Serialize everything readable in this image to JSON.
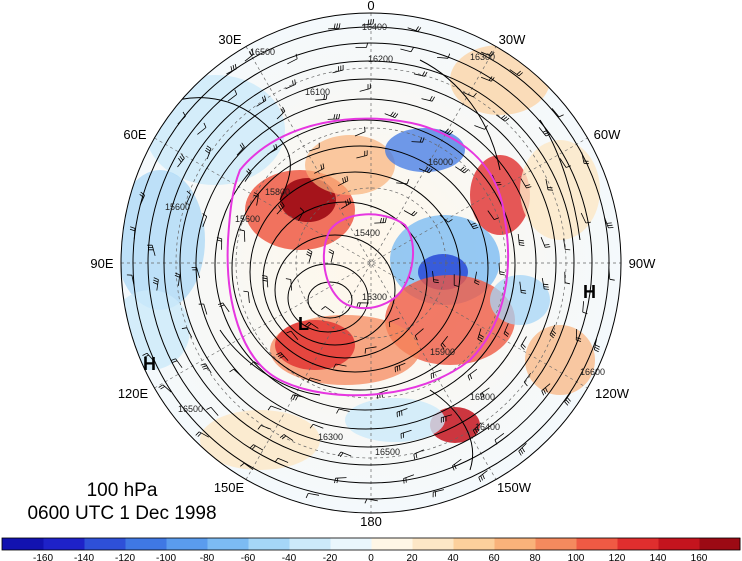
{
  "map": {
    "projection": "polar stereographic (north pole)",
    "level_label": "100 hPa",
    "time_label": "0600 UTC 1 Dec 1998",
    "longitude_labels": [
      {
        "id": "lon-0",
        "text": "0"
      },
      {
        "id": "lon-30w",
        "text": "30W"
      },
      {
        "id": "lon-60w",
        "text": "60W"
      },
      {
        "id": "lon-90w",
        "text": "90W"
      },
      {
        "id": "lon-120w",
        "text": "120W"
      },
      {
        "id": "lon-150w",
        "text": "150W"
      },
      {
        "id": "lon-180",
        "text": "180"
      },
      {
        "id": "lon-150e",
        "text": "150E"
      },
      {
        "id": "lon-120e",
        "text": "120E"
      },
      {
        "id": "lon-90e",
        "text": "90E"
      },
      {
        "id": "lon-60e",
        "text": "60E"
      },
      {
        "id": "lon-30e",
        "text": "30E"
      }
    ],
    "pressure_centers": [
      {
        "id": "low-center",
        "text": "L"
      },
      {
        "id": "high-center-east",
        "text": "H"
      },
      {
        "id": "high-center-west",
        "text": "H"
      }
    ],
    "contour_labels": [
      "16500",
      "16400",
      "16200",
      "16300",
      "16100",
      "16000",
      "15800",
      "15600",
      "15400",
      "15300",
      "15900",
      "16300",
      "16500",
      "16400",
      "16300",
      "16500",
      "16600",
      "15600"
    ],
    "colorbar": {
      "ticks": [
        "-160",
        "-140",
        "-120",
        "-100",
        "-80",
        "-60",
        "-40",
        "-20",
        "0",
        "20",
        "40",
        "60",
        "80",
        "100",
        "120",
        "140",
        "160"
      ],
      "colors": [
        "#1e22c8",
        "#2e50d8",
        "#3f78e4",
        "#5a9cee",
        "#7cbbf3",
        "#a5d6f7",
        "#cceafa",
        "#eaf7fd",
        "#fff7e6",
        "#fde7c6",
        "#fcd09c",
        "#f9b27a",
        "#f58a5e",
        "#ef5a44",
        "#e02e2e",
        "#c4141e",
        "#9c0a14"
      ]
    },
    "colors": {
      "jet_ring": "#e636e0",
      "contour": "#000000",
      "coastline": "#333333"
    }
  }
}
